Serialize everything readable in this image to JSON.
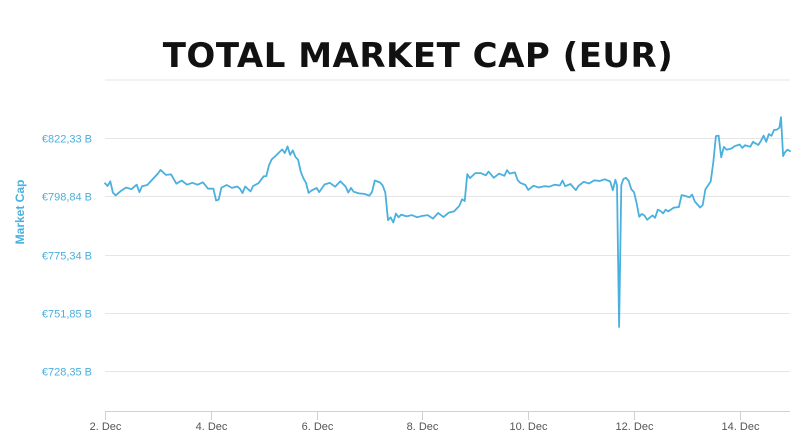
{
  "chart_data": {
    "type": "line",
    "title": "TOTAL MARKET CAP (EUR)",
    "ylabel": "Market Cap",
    "xlabel": "",
    "ylim": [
      712,
      846
    ],
    "y_ticks": [
      {
        "value": 728.35,
        "label": "€728,35 B"
      },
      {
        "value": 751.85,
        "label": "€751,85 B"
      },
      {
        "value": 775.34,
        "label": "€775,34 B"
      },
      {
        "value": 798.84,
        "label": "€798,84 B"
      },
      {
        "value": 822.33,
        "label": "€822,33 B"
      }
    ],
    "x_range_days": [
      2,
      14.95
    ],
    "x_ticks": [
      {
        "value": 2,
        "label": "2. Dec"
      },
      {
        "value": 4,
        "label": "4. Dec"
      },
      {
        "value": 6,
        "label": "6. Dec"
      },
      {
        "value": 8,
        "label": "8. Dec"
      },
      {
        "value": 10,
        "label": "10. Dec"
      },
      {
        "value": 12,
        "label": "12. Dec"
      },
      {
        "value": 14,
        "label": "14. Dec"
      }
    ],
    "grid": true,
    "legend": "none",
    "color": "#4ab0de",
    "series": [
      {
        "x_unit": "day of December",
        "y_unit": "€ billion",
        "points": [
          [
            2.0,
            804.2
          ],
          [
            2.05,
            803.1
          ],
          [
            2.1,
            805.0
          ],
          [
            2.15,
            800.4
          ],
          [
            2.2,
            799.3
          ],
          [
            2.3,
            801.1
          ],
          [
            2.4,
            802.5
          ],
          [
            2.5,
            801.8
          ],
          [
            2.6,
            803.6
          ],
          [
            2.65,
            800.6
          ],
          [
            2.7,
            803.0
          ],
          [
            2.8,
            803.5
          ],
          [
            2.9,
            805.8
          ],
          [
            3.0,
            808.1
          ],
          [
            3.05,
            809.6
          ],
          [
            3.15,
            807.6
          ],
          [
            3.25,
            807.8
          ],
          [
            3.35,
            804.0
          ],
          [
            3.45,
            805.3
          ],
          [
            3.55,
            803.6
          ],
          [
            3.65,
            804.4
          ],
          [
            3.75,
            803.6
          ],
          [
            3.85,
            804.6
          ],
          [
            3.95,
            802.0
          ],
          [
            4.05,
            802.0
          ],
          [
            4.1,
            797.2
          ],
          [
            4.15,
            797.6
          ],
          [
            4.2,
            802.4
          ],
          [
            4.3,
            803.5
          ],
          [
            4.4,
            802.3
          ],
          [
            4.5,
            802.9
          ],
          [
            4.55,
            802.0
          ],
          [
            4.6,
            800.2
          ],
          [
            4.65,
            802.9
          ],
          [
            4.75,
            800.9
          ],
          [
            4.8,
            803.1
          ],
          [
            4.9,
            804.2
          ],
          [
            5.0,
            807.0
          ],
          [
            5.05,
            807.1
          ],
          [
            5.1,
            811.5
          ],
          [
            5.15,
            813.8
          ],
          [
            5.2,
            814.8
          ],
          [
            5.25,
            815.8
          ],
          [
            5.35,
            817.9
          ],
          [
            5.4,
            816.4
          ],
          [
            5.45,
            819.1
          ],
          [
            5.5,
            815.7
          ],
          [
            5.55,
            817.5
          ],
          [
            5.6,
            814.9
          ],
          [
            5.65,
            813.7
          ],
          [
            5.7,
            808.9
          ],
          [
            5.75,
            806.2
          ],
          [
            5.8,
            804.4
          ],
          [
            5.85,
            800.3
          ],
          [
            5.9,
            801.2
          ],
          [
            6.0,
            802.3
          ],
          [
            6.05,
            800.6
          ],
          [
            6.15,
            803.7
          ],
          [
            6.25,
            804.4
          ],
          [
            6.35,
            802.8
          ],
          [
            6.45,
            805.0
          ],
          [
            6.55,
            802.8
          ],
          [
            6.6,
            800.4
          ],
          [
            6.65,
            802.3
          ],
          [
            6.7,
            800.8
          ],
          [
            6.8,
            800.1
          ],
          [
            6.9,
            799.9
          ],
          [
            7.0,
            799.2
          ],
          [
            7.05,
            800.8
          ],
          [
            7.1,
            805.3
          ],
          [
            7.2,
            804.5
          ],
          [
            7.25,
            803.3
          ],
          [
            7.3,
            800.4
          ],
          [
            7.35,
            789.3
          ],
          [
            7.4,
            790.4
          ],
          [
            7.45,
            788.3
          ],
          [
            7.5,
            791.9
          ],
          [
            7.55,
            790.4
          ],
          [
            7.6,
            791.5
          ],
          [
            7.7,
            790.8
          ],
          [
            7.8,
            791.3
          ],
          [
            7.9,
            790.4
          ],
          [
            8.0,
            791.0
          ],
          [
            8.1,
            791.3
          ],
          [
            8.2,
            789.9
          ],
          [
            8.3,
            792.2
          ],
          [
            8.4,
            790.5
          ],
          [
            8.5,
            792.3
          ],
          [
            8.6,
            792.8
          ],
          [
            8.7,
            795.1
          ],
          [
            8.75,
            797.7
          ],
          [
            8.8,
            797.0
          ],
          [
            8.85,
            807.9
          ],
          [
            8.9,
            806.3
          ],
          [
            9.0,
            808.3
          ],
          [
            9.1,
            808.3
          ],
          [
            9.2,
            807.4
          ],
          [
            9.25,
            808.9
          ],
          [
            9.35,
            806.4
          ],
          [
            9.45,
            808.1
          ],
          [
            9.55,
            807.2
          ],
          [
            9.6,
            809.5
          ],
          [
            9.65,
            808.1
          ],
          [
            9.75,
            808.6
          ],
          [
            9.8,
            805.5
          ],
          [
            9.85,
            804.4
          ],
          [
            9.95,
            803.5
          ],
          [
            10.0,
            801.5
          ],
          [
            10.1,
            803.2
          ],
          [
            10.2,
            802.5
          ],
          [
            10.3,
            803.0
          ],
          [
            10.4,
            802.8
          ],
          [
            10.5,
            803.6
          ],
          [
            10.6,
            803.3
          ],
          [
            10.65,
            805.3
          ],
          [
            10.7,
            803.0
          ],
          [
            10.8,
            803.9
          ],
          [
            10.9,
            801.4
          ],
          [
            10.95,
            803.1
          ],
          [
            11.05,
            804.8
          ],
          [
            11.15,
            804.1
          ],
          [
            11.25,
            805.4
          ],
          [
            11.35,
            805.1
          ],
          [
            11.45,
            805.8
          ],
          [
            11.55,
            804.9
          ],
          [
            11.6,
            801.4
          ],
          [
            11.65,
            805.6
          ],
          [
            11.68,
            803.4
          ],
          [
            11.72,
            746.0
          ],
          [
            11.76,
            803.5
          ],
          [
            11.8,
            805.9
          ],
          [
            11.85,
            806.4
          ],
          [
            11.9,
            805.1
          ],
          [
            11.95,
            801.8
          ],
          [
            12.0,
            800.6
          ],
          [
            12.05,
            796.2
          ],
          [
            12.1,
            790.6
          ],
          [
            12.15,
            791.8
          ],
          [
            12.2,
            791.1
          ],
          [
            12.25,
            789.4
          ],
          [
            12.3,
            790.3
          ],
          [
            12.35,
            791.2
          ],
          [
            12.4,
            790.2
          ],
          [
            12.45,
            793.5
          ],
          [
            12.5,
            793.0
          ],
          [
            12.55,
            792.0
          ],
          [
            12.6,
            793.5
          ],
          [
            12.65,
            792.8
          ],
          [
            12.75,
            794.3
          ],
          [
            12.85,
            794.6
          ],
          [
            12.9,
            799.4
          ],
          [
            12.95,
            799.2
          ],
          [
            13.05,
            798.5
          ],
          [
            13.1,
            799.6
          ],
          [
            13.15,
            796.8
          ],
          [
            13.25,
            794.4
          ],
          [
            13.3,
            795.4
          ],
          [
            13.35,
            801.7
          ],
          [
            13.45,
            804.9
          ],
          [
            13.5,
            812.7
          ],
          [
            13.55,
            823.3
          ],
          [
            13.6,
            823.5
          ],
          [
            13.65,
            814.7
          ],
          [
            13.7,
            818.9
          ],
          [
            13.75,
            817.8
          ],
          [
            13.85,
            818.3
          ],
          [
            13.9,
            819.2
          ],
          [
            14.0,
            819.9
          ],
          [
            14.05,
            818.5
          ],
          [
            14.1,
            819.6
          ],
          [
            14.2,
            819.0
          ],
          [
            14.25,
            821.0
          ],
          [
            14.35,
            819.7
          ],
          [
            14.4,
            821.3
          ],
          [
            14.45,
            823.5
          ],
          [
            14.5,
            821.0
          ],
          [
            14.55,
            824.1
          ],
          [
            14.6,
            823.4
          ],
          [
            14.65,
            825.8
          ],
          [
            14.7,
            825.9
          ],
          [
            14.75,
            826.7
          ],
          [
            14.78,
            831.0
          ],
          [
            14.82,
            815.2
          ],
          [
            14.85,
            816.6
          ],
          [
            14.9,
            817.8
          ],
          [
            14.95,
            817.2
          ]
        ]
      }
    ]
  }
}
